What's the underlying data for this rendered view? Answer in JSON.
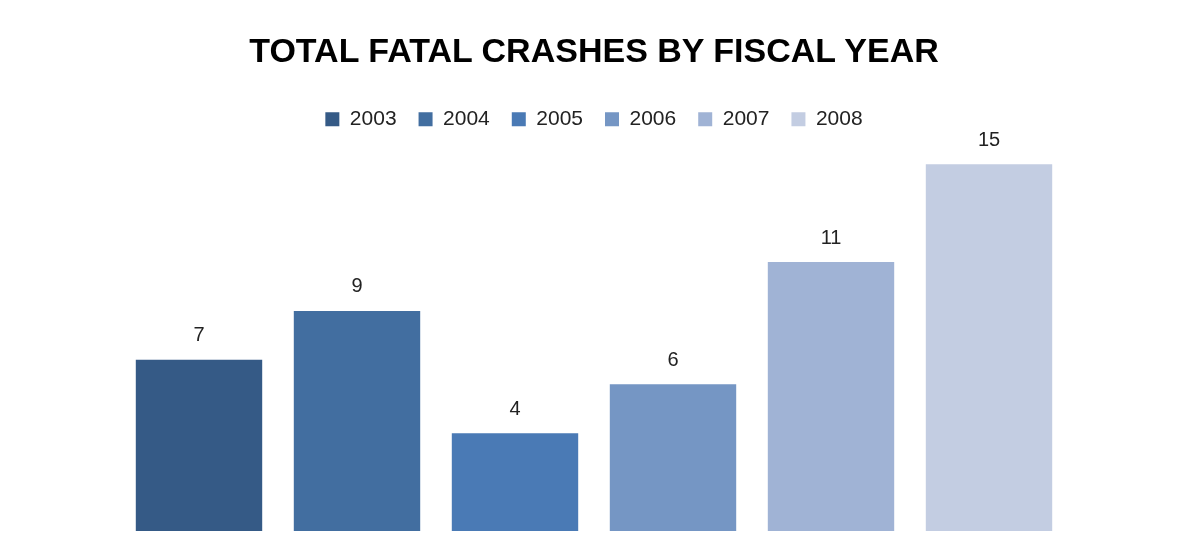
{
  "chart_data": {
    "type": "bar",
    "title": "TOTAL FATAL CRASHES BY FISCAL YEAR",
    "categories": [
      null
    ],
    "series": [
      {
        "name": "2003",
        "color": "#355a86",
        "values": [
          7
        ]
      },
      {
        "name": "2004",
        "color": "#426ea0",
        "values": [
          9
        ]
      },
      {
        "name": "2005",
        "color": "#4a7ab5",
        "values": [
          4
        ]
      },
      {
        "name": "2006",
        "color": "#7596c4",
        "values": [
          6
        ]
      },
      {
        "name": "2007",
        "color": "#a0b3d5",
        "values": [
          11
        ]
      },
      {
        "name": "2008",
        "color": "#c3cde2",
        "values": [
          15
        ]
      }
    ],
    "data_labels": true,
    "legend": "top",
    "tick_labels": false
  }
}
